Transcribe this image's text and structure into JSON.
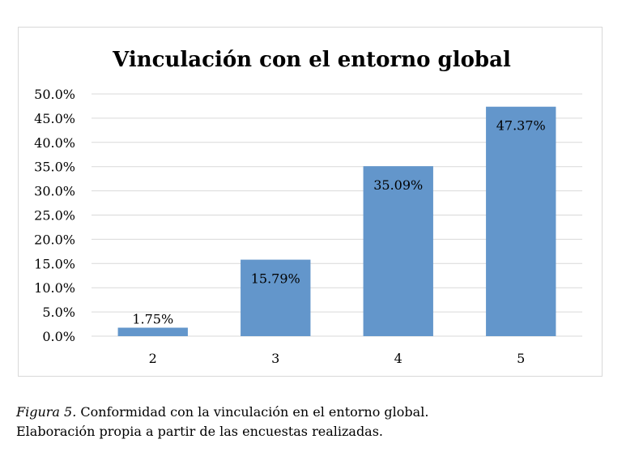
{
  "chart_data": {
    "type": "bar",
    "title": "Vinculación con el entorno global",
    "categories": [
      "2",
      "3",
      "4",
      "5"
    ],
    "values": [
      1.75,
      15.79,
      35.09,
      47.37
    ],
    "value_labels": [
      "1.75%",
      "15.79%",
      "35.09%",
      "47.37%"
    ],
    "ylim": [
      0,
      50
    ],
    "yticks": [
      0,
      5,
      10,
      15,
      20,
      25,
      30,
      35,
      40,
      45,
      50
    ],
    "ytick_labels": [
      "0.0%",
      "5.0%",
      "10.0%",
      "15.0%",
      "20.0%",
      "25.0%",
      "30.0%",
      "35.0%",
      "40.0%",
      "45.0%",
      "50.0%"
    ],
    "grid": true,
    "legend": "none",
    "bar_color": "#6396cb",
    "grid_color": "#d9d9d9"
  },
  "caption": {
    "figure_label": "Figura 5.",
    "line1": " Conformidad con la vinculación en el entorno global.",
    "line2": "Elaboración propia a partir de las encuestas realizadas."
  }
}
